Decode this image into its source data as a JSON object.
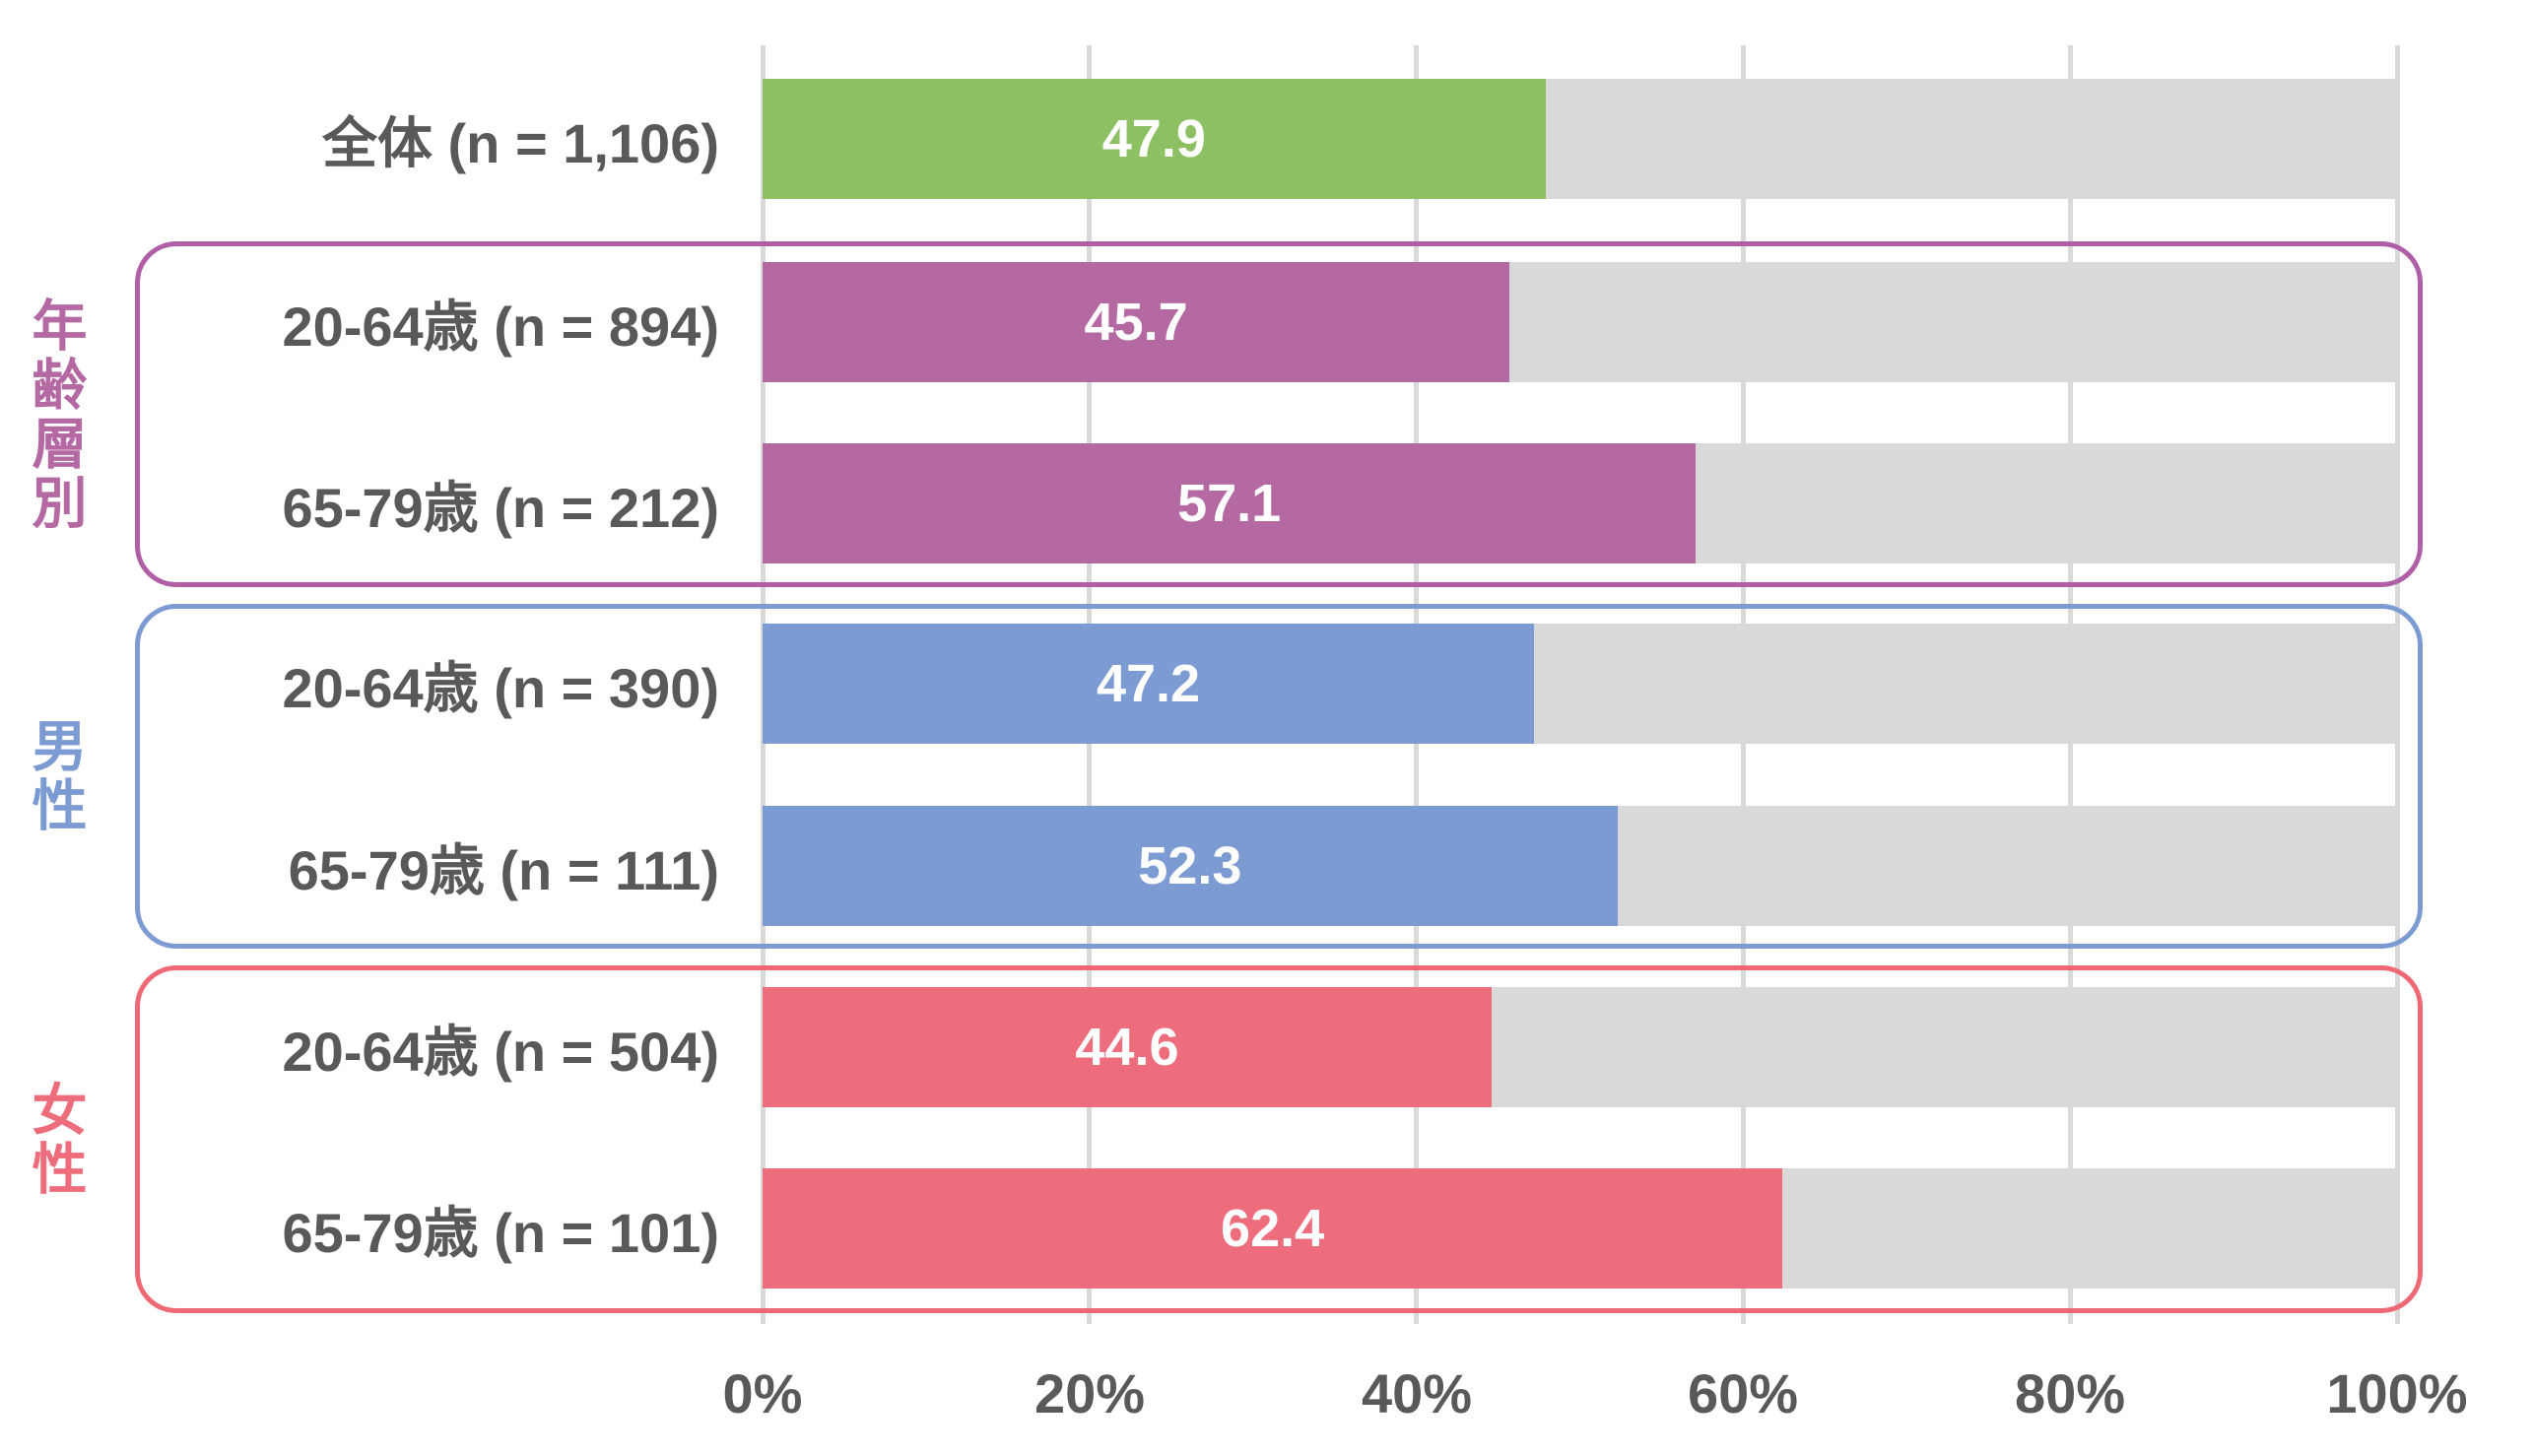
{
  "chart_data": {
    "type": "bar",
    "orientation": "horizontal",
    "title": "",
    "xlabel": "",
    "ylabel": "",
    "unit": "%",
    "xlim": [
      0,
      100
    ],
    "x_ticks": [
      "0%",
      "20%",
      "40%",
      "60%",
      "80%",
      "100%"
    ],
    "grid": true,
    "legend": false,
    "background_track": true,
    "categories": [
      "全体 (n = 1,106)",
      "20-64歳 (n = 894)",
      "65-79歳 (n = 212)",
      "20-64歳 (n = 390)",
      "65-79歳 (n = 111)",
      "20-64歳 (n = 504)",
      "65-79歳 (n = 101)"
    ],
    "values": [
      47.9,
      45.7,
      57.1,
      47.2,
      52.3,
      44.6,
      62.4
    ],
    "groups": [
      {
        "name": "全体",
        "rows": [
          "全体 (n = 1,106)"
        ],
        "color": "#8CC063"
      },
      {
        "name": "年齢層別",
        "rows": [
          "20-64歳 (n = 894)",
          "65-79歳 (n = 212)"
        ],
        "color": "#B569A3"
      },
      {
        "name": "男性",
        "rows": [
          "20-64歳 (n = 390)",
          "65-79歳 (n = 111)"
        ],
        "color": "#7D9BD3"
      },
      {
        "name": "女性",
        "rows": [
          "20-64歳 (n = 504)",
          "65-79歳 (n = 101)"
        ],
        "color": "#ED6D7C"
      }
    ]
  },
  "axis": {
    "ticks": [
      "0%",
      "20%",
      "40%",
      "60%",
      "80%",
      "100%"
    ]
  },
  "rows": [
    {
      "label": "全体 (n = 1,106)",
      "value": "47.9",
      "pct": 47.9,
      "color": "#8CC063"
    },
    {
      "label": "20-64歳 (n = 894)",
      "value": "45.7",
      "pct": 45.7,
      "color": "#B569A3"
    },
    {
      "label": "65-79歳 (n = 212)",
      "value": "57.1",
      "pct": 57.1,
      "color": "#B569A3"
    },
    {
      "label": "20-64歳 (n = 390)",
      "value": "47.2",
      "pct": 47.2,
      "color": "#7D9BD3"
    },
    {
      "label": "65-79歳 (n = 111)",
      "value": "52.3",
      "pct": 52.3,
      "color": "#7D9BD3"
    },
    {
      "label": "20-64歳 (n = 504)",
      "value": "44.6",
      "pct": 44.6,
      "color": "#ED6D7C"
    },
    {
      "label": "65-79歳 (n = 101)",
      "value": "62.4",
      "pct": 62.4,
      "color": "#ED6D7C"
    }
  ],
  "groups": [
    {
      "label": "年齢層別",
      "color": "#B569A3",
      "border": "#B05FA6"
    },
    {
      "label": "男性",
      "color": "#7D9BD3",
      "border": "#7D9BD3"
    },
    {
      "label": "女性",
      "color": "#ED6D7C",
      "border": "#EE6875"
    }
  ],
  "colors": {
    "track": "#D9D9D9",
    "grid": "#D9D9D9",
    "label_text": "#595959",
    "value_text": "#FFFFFF",
    "overall_bar": "#8CC063",
    "age_bar": "#B569A3",
    "male_bar": "#7D9BD3",
    "female_bar": "#ED6D7C"
  }
}
